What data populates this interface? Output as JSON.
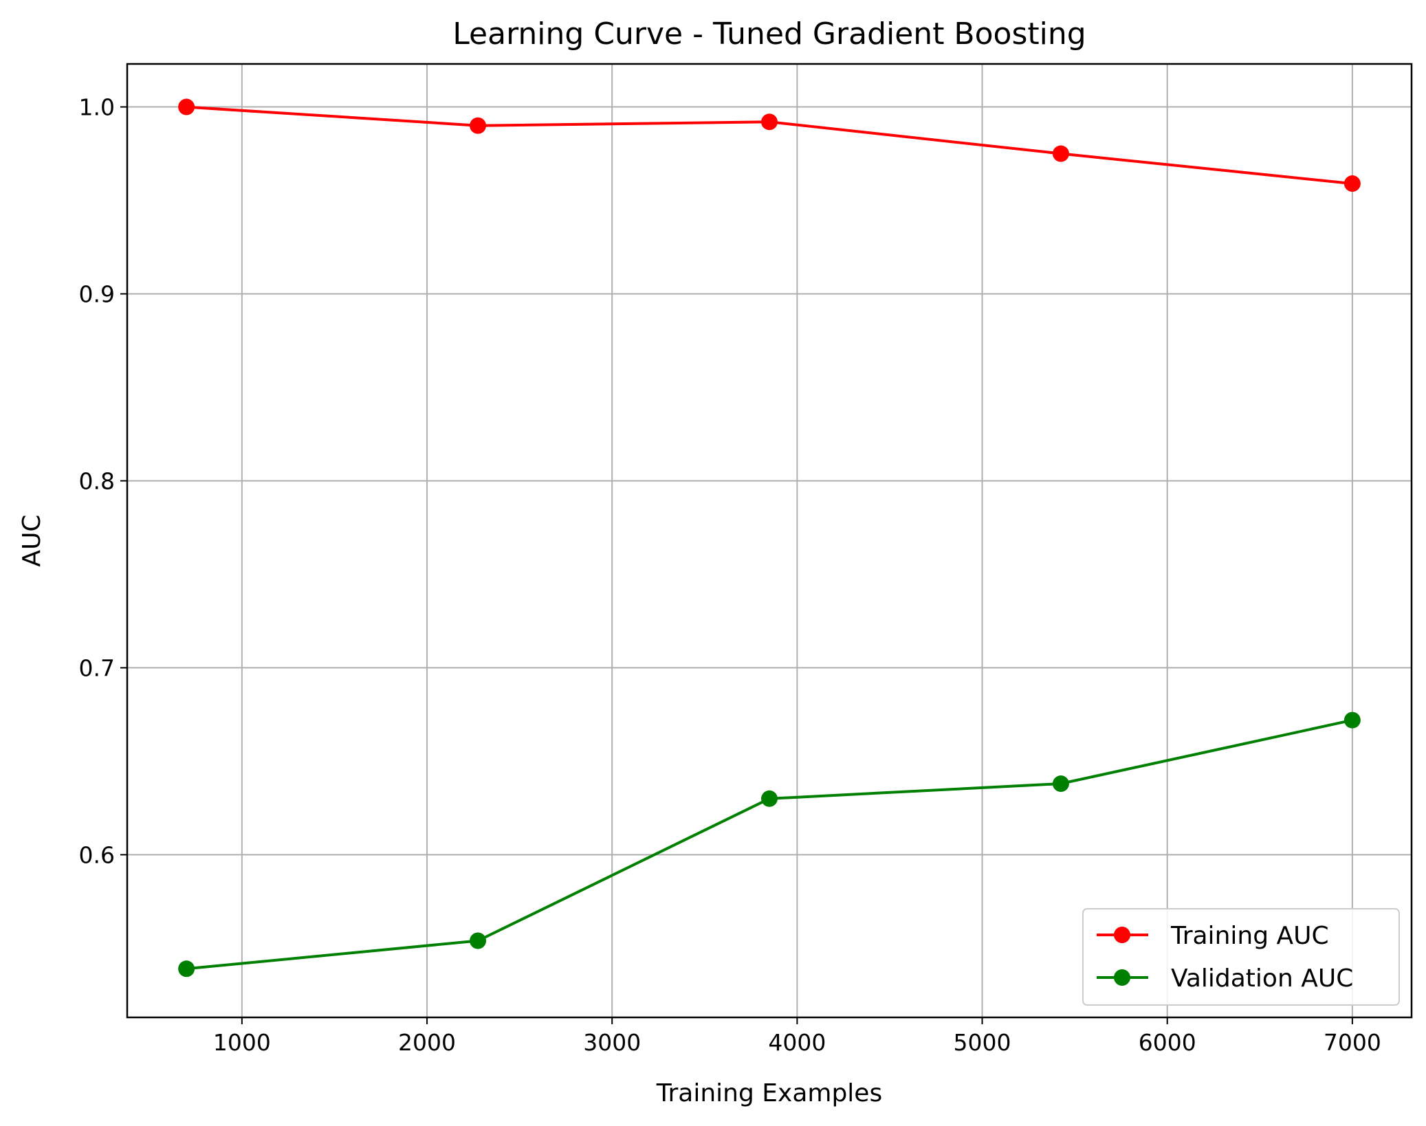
{
  "chart_data": {
    "type": "line",
    "title": "Learning Curve - Tuned Gradient Boosting",
    "xlabel": "Training Examples",
    "ylabel": "AUC",
    "xlim": [
      380,
      7320
    ],
    "ylim": [
      0.513,
      1.023
    ],
    "xticks": [
      1000,
      2000,
      3000,
      4000,
      5000,
      6000,
      7000
    ],
    "xtick_labels": [
      "1000",
      "2000",
      "3000",
      "4000",
      "5000",
      "6000",
      "7000"
    ],
    "yticks": [
      0.6,
      0.7,
      0.8,
      0.9,
      1.0
    ],
    "ytick_labels": [
      "0.6",
      "0.7",
      "0.8",
      "0.9",
      "1.0"
    ],
    "grid": true,
    "legend_position": "lower-right",
    "x": [
      700,
      2275,
      3850,
      5425,
      7000
    ],
    "series": [
      {
        "name": "Training AUC",
        "color": "#ff0000",
        "marker": "circle",
        "values": [
          1.0,
          0.99,
          0.992,
          0.975,
          0.959
        ]
      },
      {
        "name": "Validation AUC",
        "color": "#008000",
        "marker": "circle",
        "values": [
          0.539,
          0.554,
          0.63,
          0.638,
          0.672
        ]
      }
    ]
  }
}
